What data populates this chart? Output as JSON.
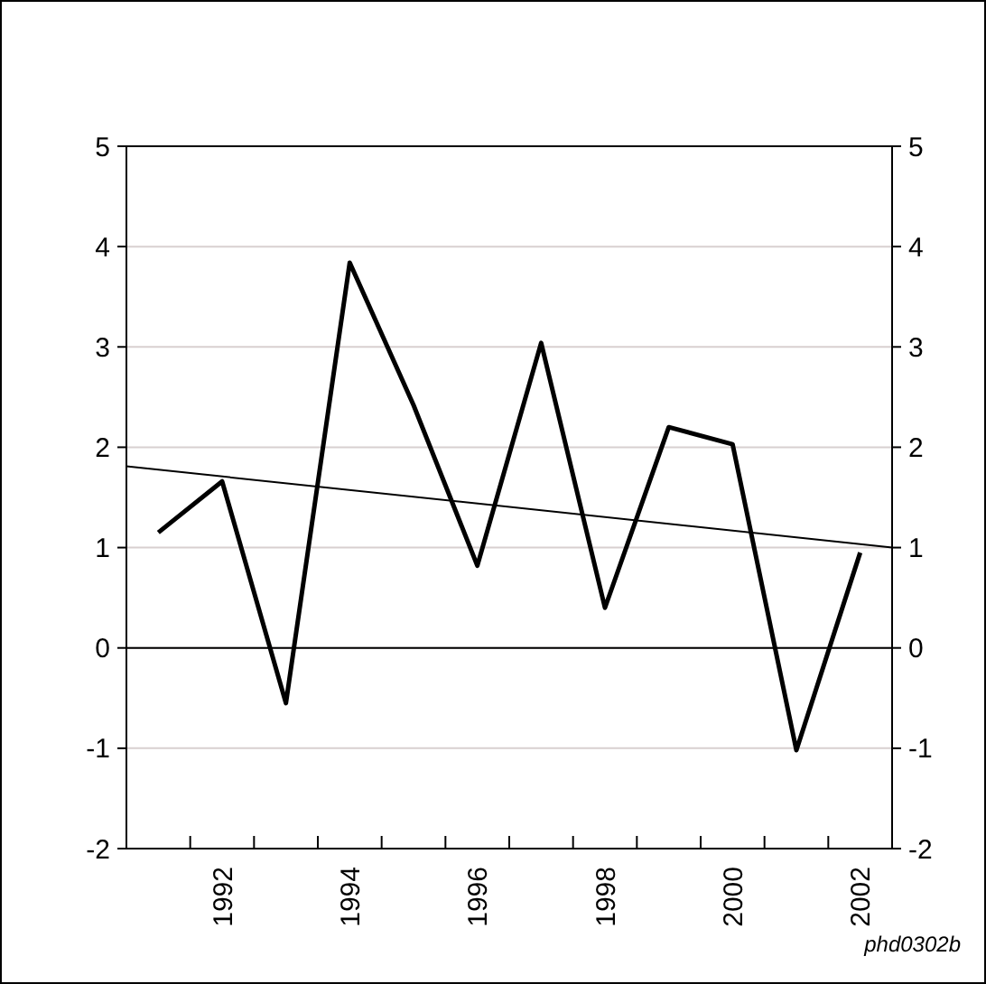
{
  "chart_data": {
    "type": "line",
    "x": [
      1991,
      1992,
      1993,
      1994,
      1995,
      1996,
      1997,
      1998,
      1999,
      2000,
      2001,
      2002
    ],
    "series": [
      {
        "color": "#000000",
        "values": [
          1.15,
          1.66,
          -0.55,
          3.84,
          2.42,
          0.82,
          3.04,
          0.4,
          2.2,
          2.03,
          -1.02,
          0.95
        ]
      },
      {
        "type": "line",
        "color": "#000000",
        "x": [
          1990.5,
          2002.5
        ],
        "values": [
          1.81,
          1.0
        ]
      }
    ],
    "xlim": [
      1990.5,
      2002.5
    ],
    "xticks": [
      {
        "value": 1991.5,
        "label": null
      },
      {
        "value": 1992,
        "label": "1992"
      },
      {
        "value": 1992.5,
        "label": null
      },
      {
        "value": 1993.5,
        "label": null
      },
      {
        "value": 1994,
        "label": "1994"
      },
      {
        "value": 1994.5,
        "label": null
      },
      {
        "value": 1995.5,
        "label": null
      },
      {
        "value": 1996,
        "label": "1996"
      },
      {
        "value": 1996.5,
        "label": null
      },
      {
        "value": 1997.5,
        "label": null
      },
      {
        "value": 1998,
        "label": "1998"
      },
      {
        "value": 1998.5,
        "label": null
      },
      {
        "value": 1999.5,
        "label": null
      },
      {
        "value": 2000,
        "label": "2000"
      },
      {
        "value": 2000.5,
        "label": null
      },
      {
        "value": 2001.5,
        "label": null
      },
      {
        "value": 2002,
        "label": "2002"
      }
    ],
    "ylim": [
      -2,
      5
    ],
    "yticks": [
      -2,
      -1,
      0,
      1,
      2,
      3,
      4,
      5
    ],
    "y2lim": [
      -2,
      5
    ],
    "y2ticks": [
      -2,
      -1,
      0,
      1,
      2,
      3,
      4,
      5
    ],
    "grid": "y",
    "marker": "none",
    "line_style": "solid",
    "ref_lines": [
      {
        "axis": "y",
        "value": 0,
        "color": "#000000"
      }
    ],
    "annotations": [
      "phd0302b"
    ]
  }
}
